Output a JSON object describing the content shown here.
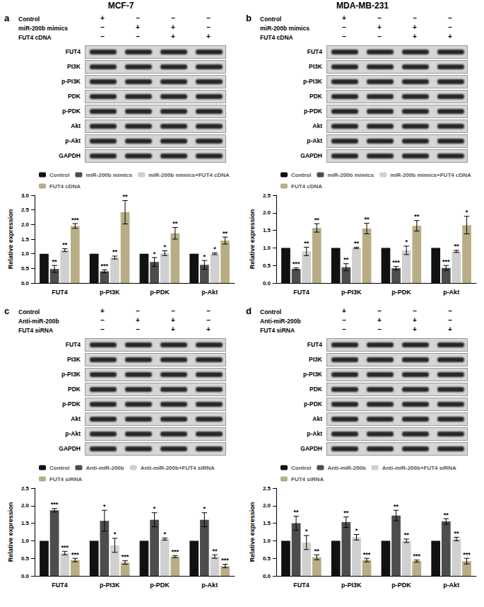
{
  "columns": [
    "MCF-7",
    "MDA-MB-231"
  ],
  "panels": [
    {
      "letter": "a",
      "treatments": [
        {
          "name": "Control",
          "signs": [
            "+",
            "–",
            "–",
            "–"
          ]
        },
        {
          "name": "miR-200b mimics",
          "signs": [
            "–",
            "+",
            "+",
            "–"
          ]
        },
        {
          "name": "FUT4 cDNA",
          "signs": [
            "–",
            "–",
            "+",
            "+"
          ]
        }
      ],
      "blot_rows": [
        "FUT4",
        "PI3K",
        "p-PI3K",
        "PDK",
        "p-PDK",
        "Akt",
        "p-Akt",
        "GAPDH"
      ]
    },
    {
      "letter": "b",
      "treatments": [
        {
          "name": "Control",
          "signs": [
            "+",
            "–",
            "–",
            "–"
          ]
        },
        {
          "name": "miR-200b mimics",
          "signs": [
            "–",
            "+",
            "+",
            "–"
          ]
        },
        {
          "name": "FUT4 cDNA",
          "signs": [
            "–",
            "–",
            "+",
            "+"
          ]
        }
      ],
      "blot_rows": [
        "FUT4",
        "PI3K",
        "p-PI3K",
        "PDK",
        "p-PDK",
        "Akt",
        "p-Akt",
        "GAPDH"
      ]
    },
    {
      "letter": "c",
      "treatments": [
        {
          "name": "Control",
          "signs": [
            "+",
            "–",
            "–",
            "–"
          ]
        },
        {
          "name": "Anti-miR-200b",
          "signs": [
            "–",
            "+",
            "+",
            "–"
          ]
        },
        {
          "name": "FUT4 siRNA",
          "signs": [
            "–",
            "–",
            "+",
            "+"
          ]
        }
      ],
      "blot_rows": [
        "FUT4",
        "PI3K",
        "p-PI3K",
        "PDK",
        "p-PDK",
        "Akt",
        "p-Akt",
        "GAPDH"
      ]
    },
    {
      "letter": "d",
      "treatments": [
        {
          "name": "Control",
          "signs": [
            "+",
            "–",
            "–",
            "–"
          ]
        },
        {
          "name": "Anti-miR-200b",
          "signs": [
            "–",
            "+",
            "+",
            "–"
          ]
        },
        {
          "name": "FUT4 siRNA",
          "signs": [
            "–",
            "–",
            "+",
            "+"
          ]
        }
      ],
      "blot_rows": [
        "FUT4",
        "PI3K",
        "p-PI3K",
        "PDK",
        "p-PDK",
        "Akt",
        "p-Akt",
        "GAPDH"
      ]
    }
  ],
  "chart_data": [
    {
      "type": "bar",
      "ylabel": "Relative expression",
      "legend": "top",
      "categories": [
        "FUT4",
        "p-PI3K",
        "p-PDK",
        "p-Akt"
      ],
      "ylim": [
        0,
        3
      ],
      "yticks": [
        {
          "value": 0,
          "label": "0.0"
        },
        0.5,
        {
          "value": 1,
          "label": "1.0"
        },
        1.5,
        {
          "value": 2,
          "label": "2.0"
        },
        2.5,
        {
          "value": 3,
          "label": "3.0"
        }
      ],
      "series": [
        {
          "name": "Control",
          "color": "#111111",
          "values": [
            1,
            1,
            1,
            1
          ]
        },
        {
          "name": "miR-200b mimics",
          "color": "#4d4d4d",
          "values": [
            0.48,
            0.4,
            0.72,
            0.62
          ],
          "errors": [
            0.12,
            0.05,
            0.15,
            0.15
          ],
          "annotations": [
            "**",
            "***",
            "*",
            "*"
          ]
        },
        {
          "name": "miR-200b mimics+FUT4 cDNA",
          "color": "#d0d0d0",
          "values": [
            1.12,
            0.87,
            1.02,
            1.0
          ],
          "errors": [
            0.05,
            0.05,
            0.08,
            0.03
          ],
          "annotations": [
            "**",
            "**",
            "*",
            "*"
          ]
        },
        {
          "name": "FUT4 cDNA",
          "color": "#b9ad86",
          "values": [
            1.95,
            2.42,
            1.7,
            1.45
          ],
          "errors": [
            0.08,
            0.4,
            0.2,
            0.12
          ],
          "annotations": [
            "***",
            "**",
            "**",
            "**"
          ]
        }
      ]
    },
    {
      "type": "bar",
      "ylabel": "Relative expression",
      "legend": "top",
      "categories": [
        "FUT4",
        "p-PI3K",
        "p-PDK",
        "p-Akt"
      ],
      "ylim": [
        0,
        2.5
      ],
      "yticks": [
        {
          "value": 0,
          "label": "0.0"
        },
        0.5,
        {
          "value": 1,
          "label": "1.0"
        },
        1.5,
        {
          "value": 2,
          "label": "2.0"
        },
        2.5
      ],
      "series": [
        {
          "name": "Control",
          "color": "#111111",
          "values": [
            1,
            1,
            1,
            1
          ]
        },
        {
          "name": "miR-200b mimics",
          "color": "#4d4d4d",
          "values": [
            0.4,
            0.45,
            0.42,
            0.43
          ],
          "errors": [
            0.03,
            0.1,
            0.05,
            0.07
          ],
          "annotations": [
            "***",
            "**",
            "***",
            "***"
          ]
        },
        {
          "name": "miR-200b mimics+FUT4 cDNA",
          "color": "#d0d0d0",
          "values": [
            0.9,
            1.0,
            0.93,
            0.9
          ],
          "errors": [
            0.12,
            0.02,
            0.12,
            0.03
          ],
          "annotations": [
            "**",
            "**",
            "*",
            "**"
          ]
        },
        {
          "name": "FUT4 cDNA",
          "color": "#b9ad86",
          "values": [
            1.57,
            1.55,
            1.63,
            1.65
          ],
          "errors": [
            0.12,
            0.15,
            0.15,
            0.25
          ],
          "annotations": [
            "**",
            "**",
            "**",
            "*"
          ]
        }
      ]
    },
    {
      "type": "bar",
      "ylabel": "Relative expression",
      "legend": "top",
      "categories": [
        "FUT4",
        "p-PI3K",
        "p-PDK",
        "p-Akt"
      ],
      "ylim": [
        0,
        2.5
      ],
      "yticks": [
        {
          "value": 0,
          "label": "0.0"
        },
        0.5,
        {
          "value": 1,
          "label": "1.0"
        },
        1.5,
        {
          "value": 2,
          "label": "2.0"
        },
        2.5
      ],
      "series": [
        {
          "name": "Control",
          "color": "#111111",
          "values": [
            1,
            1,
            1,
            1
          ]
        },
        {
          "name": "Anti-miR-200b",
          "color": "#4d4d4d",
          "values": [
            1.87,
            1.57,
            1.6,
            1.6
          ],
          "errors": [
            0.05,
            0.3,
            0.2,
            0.2
          ],
          "annotations": [
            "***",
            "*",
            "*",
            "*"
          ]
        },
        {
          "name": "Anti-miR-200b+FUT4 siRNA",
          "color": "#d0d0d0",
          "values": [
            0.65,
            0.87,
            1.05,
            0.55
          ],
          "errors": [
            0.05,
            0.2,
            0.03,
            0.05
          ],
          "annotations": [
            "***",
            "*",
            "*",
            "**"
          ]
        },
        {
          "name": "FUT4 siRNA",
          "color": "#b9ad86",
          "values": [
            0.45,
            0.38,
            0.55,
            0.28
          ],
          "errors": [
            0.05,
            0.05,
            0.03,
            0.05
          ],
          "annotations": [
            "***",
            "***",
            "***",
            "***"
          ]
        }
      ]
    },
    {
      "type": "bar",
      "ylabel": "Relative expression",
      "legend": "top",
      "categories": [
        "FUT4",
        "p-PI3K",
        "p-PDK",
        "p-Akt"
      ],
      "ylim": [
        0,
        2.5
      ],
      "yticks": [
        {
          "value": 0,
          "label": "0.0"
        },
        0.5,
        {
          "value": 1,
          "label": "1.0"
        },
        1.5,
        {
          "value": 2,
          "label": "2.0"
        },
        2.5
      ],
      "series": [
        {
          "name": "Control",
          "color": "#111111",
          "values": [
            1,
            1,
            1,
            1
          ]
        },
        {
          "name": "Anti-miR-200b",
          "color": "#4d4d4d",
          "values": [
            1.5,
            1.53,
            1.72,
            1.55
          ],
          "errors": [
            0.2,
            0.15,
            0.15,
            0.08
          ],
          "annotations": [
            "**",
            "**",
            "**",
            "**"
          ]
        },
        {
          "name": "Anti-miR-200b+FUT4 siRNA",
          "color": "#d0d0d0",
          "values": [
            0.95,
            1.1,
            1.0,
            1.05
          ],
          "errors": [
            0.2,
            0.08,
            0.05,
            0.05
          ],
          "annotations": [
            "*",
            "*",
            "**",
            "**"
          ]
        },
        {
          "name": "FUT4 siRNA",
          "color": "#b9ad86",
          "values": [
            0.53,
            0.45,
            0.42,
            0.42
          ],
          "errors": [
            0.07,
            0.05,
            0.03,
            0.08
          ],
          "annotations": [
            "**",
            "***",
            "***",
            "***"
          ]
        }
      ]
    }
  ]
}
